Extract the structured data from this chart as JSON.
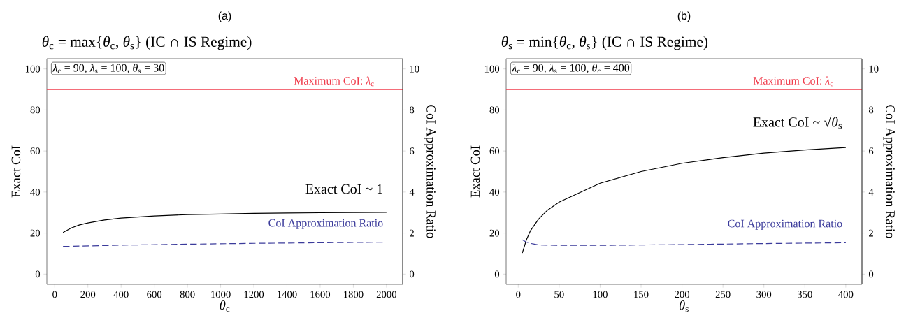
{
  "chart_data": [
    {
      "type": "line",
      "title": "(a)",
      "subtitle": "*θ*$_{c}$ = max{*θ*$_{c}$, *θ*$_{s}$} (IC ∩ IS Regime)",
      "xlabel": "*θ*$_{c}$",
      "ylabel": "Exact CoI",
      "y2label": "CoI Approximation Ratio",
      "annotations": [
        "*λ*$_{c}$ = 90, *λ*$_{s}$ = 100, *θ*$_{s}$ = 30"
      ],
      "series": [
        {
          "name": "Exact CoI ~ 1",
          "color": "#000000",
          "line_style": "solid",
          "x": [
            50,
            100,
            150,
            200,
            300,
            400,
            600,
            800,
            1000,
            1200,
            1400,
            1600,
            1800,
            2000
          ],
          "values": [
            20.3,
            22.5,
            24.0,
            24.9,
            26.4,
            27.3,
            28.3,
            29.0,
            29.3,
            29.6,
            29.8,
            29.9,
            30.0,
            30.1
          ]
        },
        {
          "name": "CoI Approximation Ratio",
          "color": "#3b3b9b",
          "line_style": "dashed",
          "axis": "y2",
          "x": [
            50,
            400,
            800,
            1200,
            1600,
            2000
          ],
          "values": [
            1.35,
            1.41,
            1.46,
            1.5,
            1.53,
            1.56
          ]
        }
      ],
      "ref_lines": [
        {
          "axis": "y",
          "value": 90,
          "label": "Maximum CoI: *λ*$_{c}$",
          "color": "#f03c4c"
        }
      ],
      "xlim": [
        -47.5,
        2097.5
      ],
      "ylim": [
        -5,
        105
      ],
      "y2lim": [
        -0.5,
        10.5
      ],
      "xticks": [
        0,
        200,
        400,
        600,
        800,
        1000,
        1200,
        1400,
        1600,
        1800,
        2000
      ],
      "yticks": [
        0,
        20,
        40,
        60,
        80,
        100
      ],
      "y2ticks": [
        0,
        2,
        4,
        6,
        8,
        10
      ],
      "grid": false,
      "marker": "none"
    },
    {
      "type": "line",
      "title": "(b)",
      "subtitle": "*θ*$_{s}$ = min{*θ*$_{c}$, *θ*$_{s}$} (IC ∩ IS Regime)",
      "xlabel": "*θ*$_{s}$",
      "ylabel": "Exact CoI",
      "y2label": "CoI Approximation Ratio",
      "annotations": [
        "*λ*$_{c}$ = 90, *λ*$_{s}$ = 100, *θ*$_{c}$ = 400"
      ],
      "series": [
        {
          "name": "Exact CoI ~ √*θ*$_{s}$",
          "color": "#000000",
          "line_style": "solid",
          "x": [
            5,
            10,
            15,
            25,
            35,
            50,
            100,
            150,
            200,
            250,
            300,
            350,
            400
          ],
          "values": [
            10.3,
            16.7,
            21.2,
            26.9,
            30.9,
            35.1,
            44.3,
            50.0,
            54.0,
            56.8,
            59.0,
            60.5,
            61.7
          ]
        },
        {
          "name": "CoI Approximation Ratio",
          "color": "#3b3b9b",
          "line_style": "dashed",
          "axis": "y2",
          "x": [
            5,
            10,
            15,
            25,
            50,
            100,
            200,
            300,
            400
          ],
          "values": [
            1.67,
            1.56,
            1.5,
            1.42,
            1.4,
            1.4,
            1.44,
            1.49,
            1.53
          ]
        }
      ],
      "ref_lines": [
        {
          "axis": "y",
          "value": 90,
          "label": "Maximum CoI: *λ*$_{c}$",
          "color": "#f03c4c"
        }
      ],
      "xlim": [
        -14.75,
        419.75
      ],
      "ylim": [
        -5,
        105
      ],
      "y2lim": [
        -0.5,
        10.5
      ],
      "xticks": [
        0,
        50,
        100,
        150,
        200,
        250,
        300,
        350,
        400
      ],
      "yticks": [
        0,
        20,
        40,
        60,
        80,
        100
      ],
      "y2ticks": [
        0,
        2,
        4,
        6,
        8,
        10
      ],
      "grid": false,
      "marker": "none"
    }
  ]
}
